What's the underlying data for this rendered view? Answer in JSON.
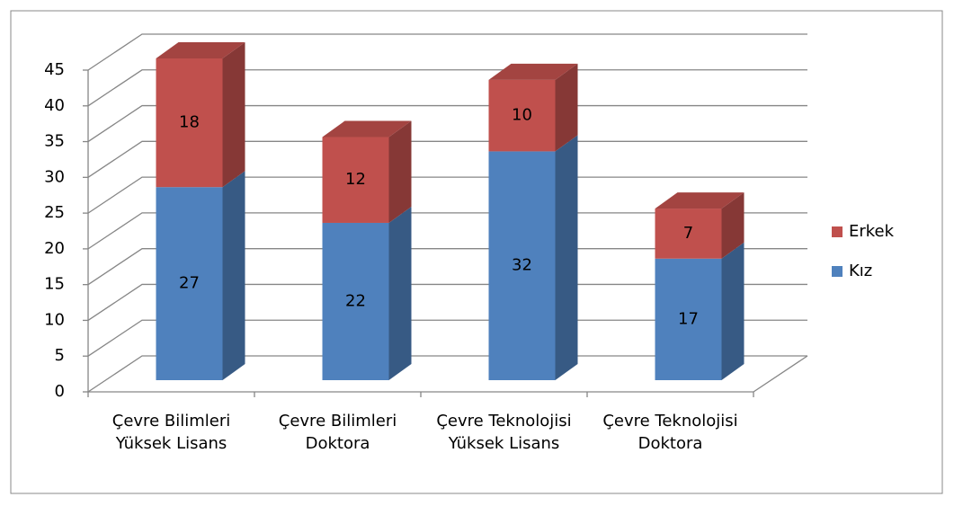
{
  "chart_data": {
    "type": "bar3d_stacked",
    "categories": [
      "Çevre Bilimleri Yüksek Lisans",
      "Çevre Bilimleri Doktora",
      "Çevre Teknolojisi Yüksek Lisans",
      "Çevre Teknolojisi Doktora"
    ],
    "series": [
      {
        "name": "Kız",
        "color": "#4f81bd",
        "values": [
          27,
          22,
          32,
          17
        ]
      },
      {
        "name": "Erkek",
        "color": "#c0504d",
        "values": [
          18,
          12,
          10,
          7
        ]
      }
    ],
    "ylim": [
      0,
      45
    ],
    "yticks": [
      0,
      5,
      10,
      15,
      20,
      25,
      30,
      35,
      40,
      45
    ],
    "grid": true,
    "legend": "right"
  }
}
